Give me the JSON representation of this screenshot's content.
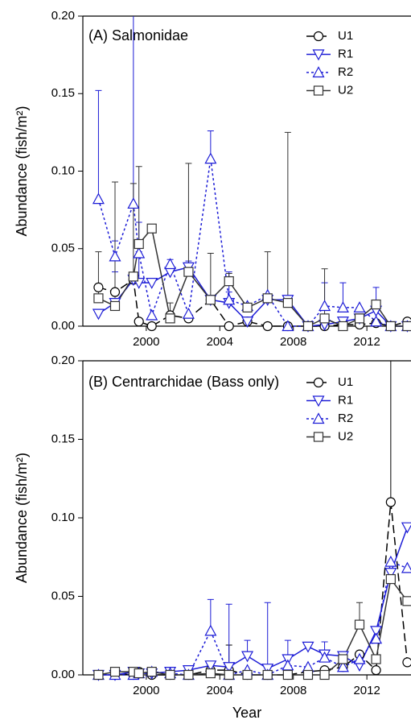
{
  "chart_data": [
    {
      "type": "line",
      "title": "(A) Salmonidae",
      "ylabel": "Abundance (fish/m²)",
      "x": [
        1997.4,
        1998.3,
        1999.3,
        1999.6,
        2000.3,
        2001.3,
        2002.3,
        2003.5,
        2004.5,
        2005.5,
        2006.6,
        2007.7,
        2008.8,
        2009.7,
        2010.7,
        2011.6,
        2012.5,
        2013.3,
        2014.2
      ],
      "xlim": [
        1996.55,
        2014.4
      ],
      "xticks": [
        2000,
        2004,
        2008,
        2012
      ],
      "ylim": [
        0,
        0.2
      ],
      "yticks": [
        {
          "value": 0,
          "label": "0.00"
        },
        {
          "value": 0.05,
          "label": "0.05"
        },
        {
          "value": 0.1,
          "label": "0.10"
        },
        {
          "value": 0.15,
          "label": "0.15"
        },
        {
          "value": 0.2,
          "label": "0.20"
        }
      ],
      "series": [
        {
          "name": "U1",
          "color": "#000000",
          "dash": "dashed",
          "marker": "circle",
          "values": [
            0.025,
            0.022,
            0.03,
            0.003,
            0.0,
            0.007,
            0.005,
            0.017,
            0.0,
            0.003,
            0.0,
            0.0,
            0.0,
            0.0,
            0.001,
            0.001,
            0.002,
            0.0,
            0.003
          ],
          "errors": [
            null,
            null,
            null,
            null,
            null,
            null,
            null,
            null,
            null,
            null,
            null,
            null,
            null,
            null,
            null,
            null,
            null,
            null,
            null
          ]
        },
        {
          "name": "R1",
          "color": "#1c1cd6",
          "dash": "solid",
          "marker": "triangle-down",
          "values": [
            0.008,
            0.015,
            0.03,
            0.028,
            0.028,
            0.035,
            0.038,
            0.017,
            0.015,
            0.003,
            0.017,
            0.017,
            0.0,
            0.001,
            0.003,
            0.005,
            0.01,
            0.0,
            0.0
          ],
          "errors": [
            null,
            0.02,
            null,
            0.02,
            null,
            0.008,
            0.004,
            null,
            0.02,
            null,
            null,
            null,
            null,
            null,
            null,
            null,
            0.015,
            null,
            null
          ]
        },
        {
          "name": "R2",
          "color": "#1c1cd6",
          "dash": "dotted",
          "marker": "triangle-up",
          "values": [
            0.082,
            0.045,
            0.079,
            0.047,
            0.007,
            0.04,
            0.008,
            0.108,
            0.017,
            0.013,
            0.02,
            0.0,
            0.0,
            0.013,
            0.012,
            0.012,
            0.003,
            0.0,
            0.0
          ],
          "errors": [
            0.07,
            0.01,
            0.15,
            0.02,
            null,
            null,
            null,
            0.018,
            0.005,
            null,
            null,
            null,
            null,
            0.015,
            0.016,
            null,
            null,
            null,
            null
          ]
        },
        {
          "name": "U2",
          "color": "#333333",
          "dash": "solid",
          "marker": "square",
          "values": [
            0.018,
            0.013,
            0.032,
            0.053,
            0.063,
            0.005,
            0.035,
            0.017,
            0.029,
            0.012,
            0.018,
            0.015,
            0.0,
            0.005,
            0.0,
            0.005,
            0.014,
            0.0,
            0.0
          ],
          "errors": [
            0.03,
            0.08,
            0.06,
            0.05,
            null,
            0.01,
            0.07,
            0.03,
            0.005,
            null,
            0.03,
            0.11,
            null,
            0.032,
            null,
            null,
            null,
            null,
            null
          ]
        }
      ]
    },
    {
      "type": "line",
      "title": "(B) Centrarchidae (Bass only)",
      "ylabel": "Abundance (fish/m²)",
      "xlabel": "Year",
      "x": [
        1997.4,
        1998.3,
        1999.3,
        1999.6,
        2000.3,
        2001.3,
        2002.3,
        2003.5,
        2004.5,
        2005.5,
        2006.6,
        2007.7,
        2008.8,
        2009.7,
        2010.7,
        2011.6,
        2012.5,
        2013.3,
        2014.2
      ],
      "xlim": [
        1996.55,
        2014.4
      ],
      "xticks": [
        2000,
        2004,
        2008,
        2012
      ],
      "ylim": [
        0,
        0.2
      ],
      "yticks": [
        {
          "value": 0,
          "label": "0.00"
        },
        {
          "value": 0.05,
          "label": "0.05"
        },
        {
          "value": 0.1,
          "label": "0.10"
        },
        {
          "value": 0.15,
          "label": "0.15"
        },
        {
          "value": 0.2,
          "label": "0.20"
        }
      ],
      "series": [
        {
          "name": "U1",
          "color": "#000000",
          "dash": "dashed",
          "marker": "circle",
          "values": [
            0.0,
            0.001,
            0.0,
            0.002,
            0.0,
            0.0,
            0.0,
            0.003,
            0.003,
            0.0,
            0.0,
            0.0,
            0.002,
            0.003,
            0.005,
            0.013,
            0.003,
            0.11,
            0.008
          ],
          "errors": [
            null,
            null,
            null,
            null,
            null,
            null,
            null,
            null,
            0.016,
            null,
            null,
            null,
            null,
            null,
            null,
            null,
            null,
            0.09,
            null
          ]
        },
        {
          "name": "R1",
          "color": "#1c1cd6",
          "dash": "solid",
          "marker": "triangle-down",
          "values": [
            0.0,
            0.0,
            0.002,
            0.001,
            0.001,
            0.002,
            0.003,
            0.006,
            0.005,
            0.012,
            0.004,
            0.01,
            0.018,
            0.013,
            0.012,
            0.006,
            0.028,
            0.065,
            0.094
          ],
          "errors": [
            null,
            null,
            null,
            null,
            null,
            null,
            null,
            null,
            0.04,
            0.01,
            0.042,
            0.012,
            null,
            0.008,
            null,
            null,
            null,
            null,
            null
          ]
        },
        {
          "name": "R2",
          "color": "#1c1cd6",
          "dash": "dotted",
          "marker": "triangle-up",
          "values": [
            0.0,
            0.0,
            0.0,
            0.001,
            0.002,
            0.001,
            0.0,
            0.028,
            0.0,
            0.003,
            0.0,
            0.006,
            0.005,
            0.011,
            0.005,
            0.01,
            0.023,
            0.072,
            0.068
          ],
          "errors": [
            null,
            null,
            null,
            null,
            null,
            null,
            null,
            0.02,
            null,
            null,
            null,
            null,
            null,
            null,
            null,
            null,
            null,
            null,
            null
          ]
        },
        {
          "name": "U2",
          "color": "#333333",
          "dash": "solid",
          "marker": "square",
          "values": [
            0.0,
            0.002,
            0.002,
            0.001,
            0.002,
            0.0,
            0.0,
            0.001,
            0.0,
            0.0,
            0.0,
            0.0,
            0.0,
            0.0,
            0.01,
            0.032,
            0.01,
            0.061,
            0.047
          ],
          "errors": [
            null,
            null,
            null,
            null,
            null,
            null,
            null,
            null,
            null,
            null,
            null,
            null,
            null,
            null,
            null,
            0.014,
            null,
            null,
            null
          ]
        }
      ]
    }
  ]
}
